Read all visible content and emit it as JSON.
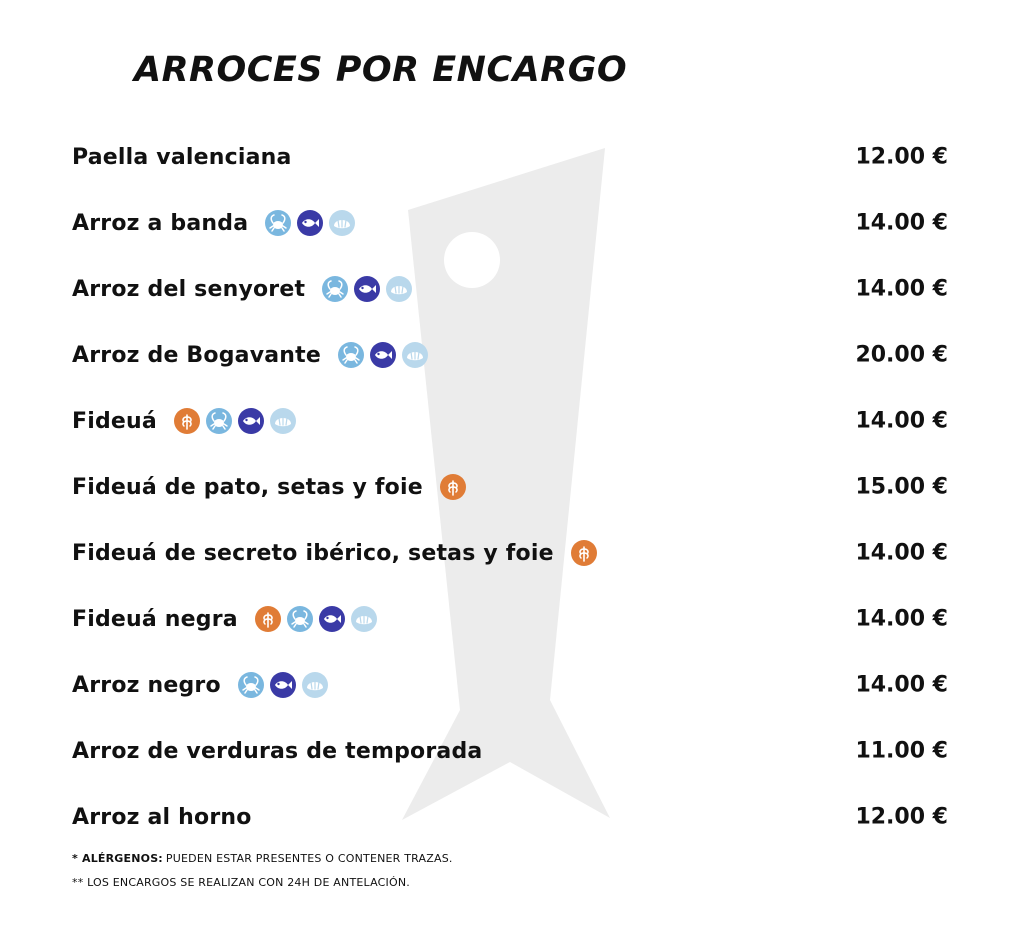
{
  "title": "ARROCES POR ENCARGO",
  "colors": {
    "gluten": "#e07c36",
    "crustacean": "#7ab7df",
    "fish": "#3a3aa6",
    "mollusc": "#b9d8ec",
    "watermark": "#ececec",
    "text": "#111111"
  },
  "items": [
    {
      "name": "Paella valenciana",
      "price": "12.00 €",
      "allergens": []
    },
    {
      "name": "Arroz a banda",
      "price": "14.00 €",
      "allergens": [
        "crustacean-icon",
        "fish-icon",
        "mollusc-icon"
      ]
    },
    {
      "name": "Arroz del senyoret",
      "price": "14.00 €",
      "allergens": [
        "crustacean-icon",
        "fish-icon",
        "mollusc-icon"
      ]
    },
    {
      "name": "Arroz de Bogavante",
      "price": "20.00 €",
      "allergens": [
        "crustacean-icon",
        "fish-icon",
        "mollusc-icon"
      ]
    },
    {
      "name": "Fideuá",
      "price": "14.00 €",
      "allergens": [
        "gluten-icon",
        "crustacean-icon",
        "fish-icon",
        "mollusc-icon"
      ]
    },
    {
      "name": "Fideuá de pato, setas y foie",
      "price": "15.00 €",
      "allergens": [
        "gluten-icon"
      ]
    },
    {
      "name": "Fideuá de secreto ibérico, setas y foie",
      "price": "14.00 €",
      "allergens": [
        "gluten-icon"
      ]
    },
    {
      "name": "Fideuá negra",
      "price": "14.00 €",
      "allergens": [
        "gluten-icon",
        "crustacean-icon",
        "fish-icon",
        "mollusc-icon"
      ]
    },
    {
      "name": "Arroz negro",
      "price": "14.00 €",
      "allergens": [
        "crustacean-icon",
        "fish-icon",
        "mollusc-icon"
      ]
    },
    {
      "name": "Arroz de verduras de temporada",
      "price": "11.00 €",
      "allergens": []
    },
    {
      "name": "Arroz al horno",
      "price": "12.00 €",
      "allergens": []
    }
  ],
  "notes": {
    "allergens_prefix": "* ALÉRGENOS:",
    "allergens_text": "PUEDEN ESTAR PRESENTES O CONTENER TRAZAS.",
    "orders_text": "** LOS ENCARGOS SE REALIZAN CON 24H DE ANTELACIÓN."
  }
}
